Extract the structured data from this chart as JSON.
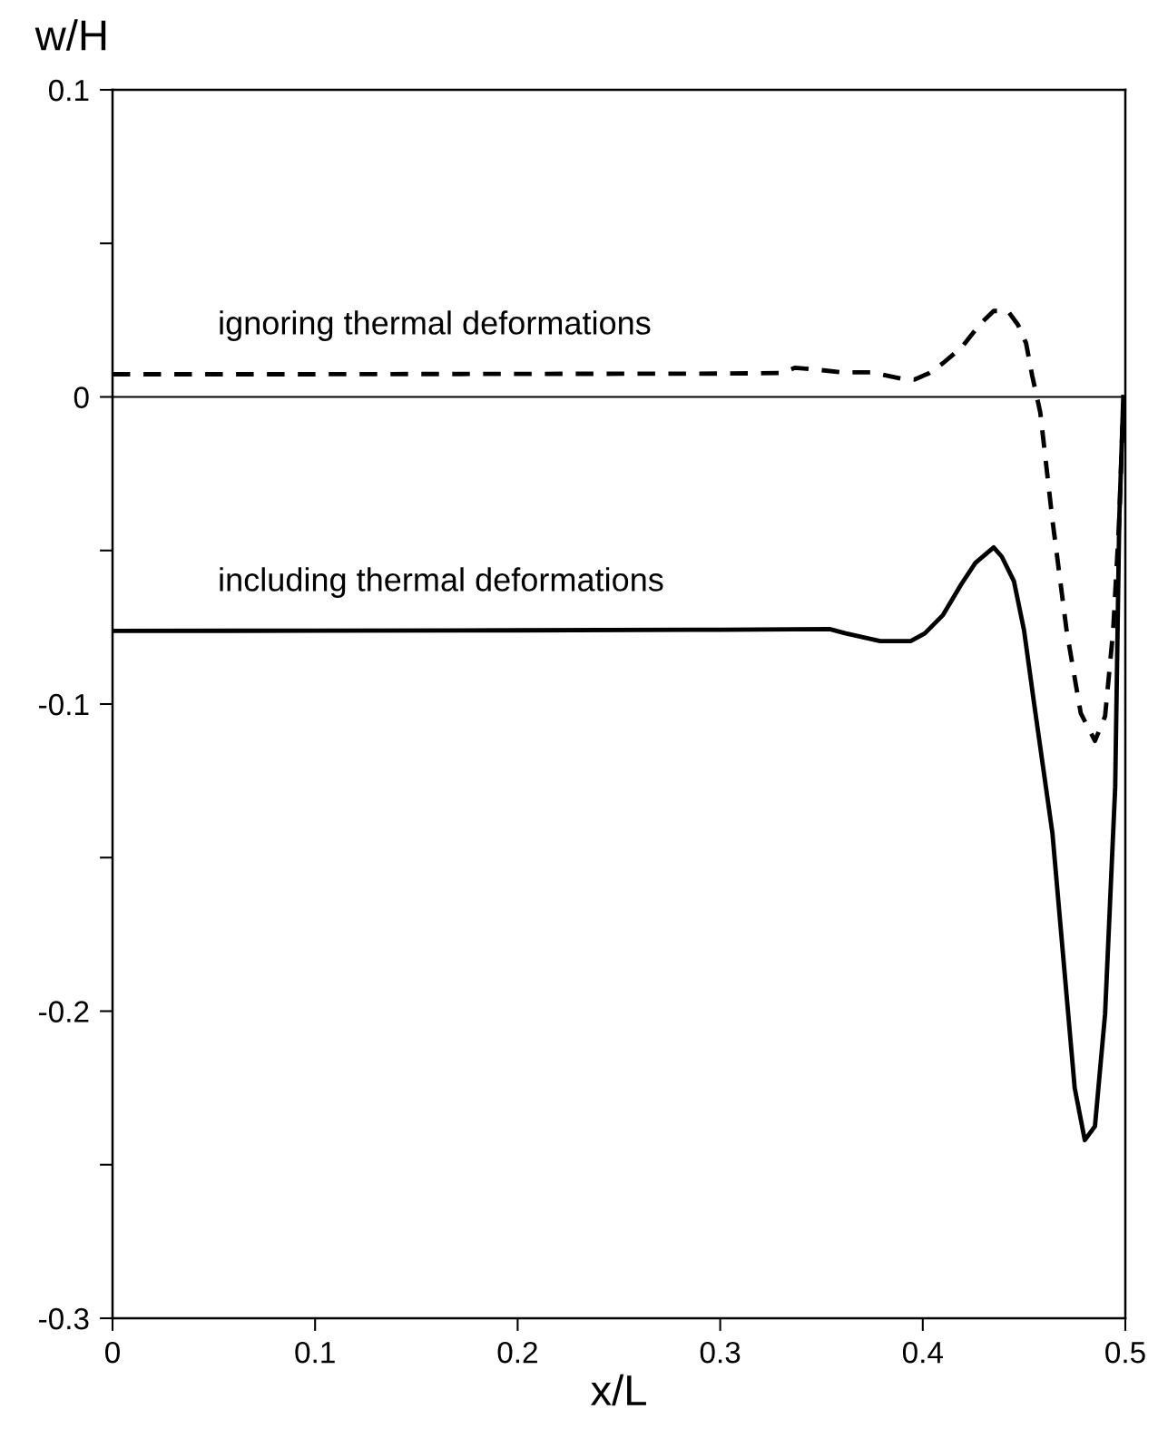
{
  "chart_data": {
    "type": "line",
    "xlabel": "x/L",
    "ylabel": "w/H",
    "xlim": [
      0,
      0.5
    ],
    "ylim": [
      -0.3,
      0.1
    ],
    "xticks": [
      0,
      0.1,
      0.2,
      0.3,
      0.4,
      0.5
    ],
    "yticks": [
      -0.3,
      {
        "value": -0.25,
        "label": null
      },
      -0.2,
      {
        "value": -0.15,
        "label": null
      },
      -0.1,
      {
        "value": -0.05,
        "label": null
      },
      0,
      {
        "value": 0.05,
        "label": null
      },
      0.1
    ],
    "grid": false,
    "legend": false,
    "ref_lines": [
      {
        "axis": "y",
        "value": 0,
        "color": "#000000",
        "line_style": "solid"
      }
    ],
    "series": [
      {
        "name": "ignoring thermal deformations",
        "color": "#000000",
        "line_style": "dashed",
        "x": [
          0,
          0.1,
          0.2,
          0.3,
          0.33,
          0.337,
          0.346,
          0.36,
          0.375,
          0.389,
          0.396,
          0.403,
          0.41,
          0.419,
          0.428,
          0.435,
          0.442,
          0.447,
          0.451,
          0.454,
          0.458,
          0.464,
          0.471,
          0.478,
          0.485,
          0.49,
          0.494,
          0.497,
          0.499
        ],
        "values": [
          0.0074,
          0.0074,
          0.0075,
          0.0076,
          0.0078,
          0.0095,
          0.009,
          0.008,
          0.008,
          0.006,
          0.0057,
          0.0077,
          0.011,
          0.016,
          0.0235,
          0.028,
          0.028,
          0.0235,
          0.0175,
          0.007,
          -0.005,
          -0.04,
          -0.076,
          -0.103,
          -0.112,
          -0.104,
          -0.076,
          -0.04,
          -0.002
        ]
      },
      {
        "name": "including thermal deformations",
        "color": "#000000",
        "line_style": "solid",
        "x": [
          0,
          0.1,
          0.2,
          0.3,
          0.354,
          0.362,
          0.369,
          0.379,
          0.394,
          0.401,
          0.41,
          0.419,
          0.426,
          0.435,
          0.439,
          0.445,
          0.45,
          0.455,
          0.464,
          0.475,
          0.48,
          0.485,
          0.49,
          0.495,
          0.497,
          0.499
        ],
        "values": [
          -0.0762,
          -0.0761,
          -0.076,
          -0.0758,
          -0.0756,
          -0.077,
          -0.078,
          -0.0795,
          -0.0795,
          -0.077,
          -0.071,
          -0.061,
          -0.054,
          -0.049,
          -0.052,
          -0.06,
          -0.076,
          -0.1,
          -0.142,
          -0.225,
          -0.242,
          -0.2375,
          -0.201,
          -0.127,
          -0.04,
          0
        ]
      }
    ]
  }
}
